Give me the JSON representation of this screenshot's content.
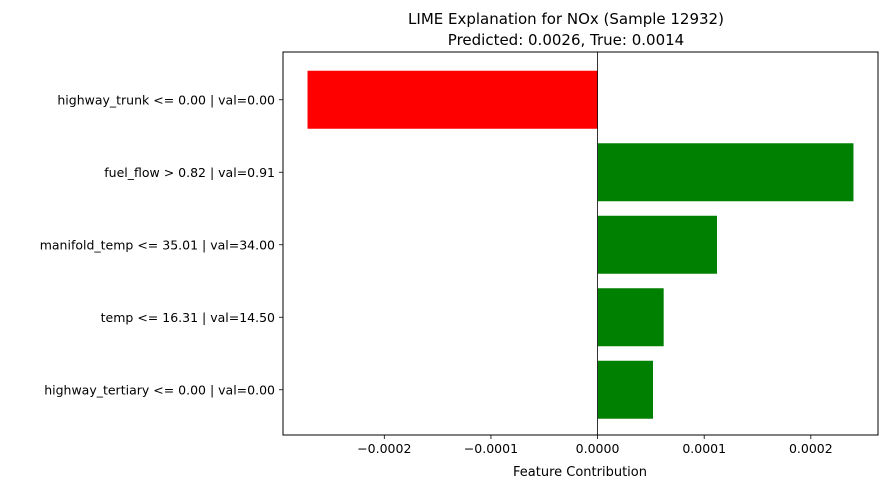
{
  "chart_data": {
    "type": "bar",
    "orientation": "horizontal",
    "title_line1": "LIME Explanation for NOx (Sample 12932)",
    "title_line2": "Predicted: 0.0026, True: 0.0014",
    "xlabel": "Feature Contribution",
    "ylabel": "",
    "categories": [
      "highway_trunk <= 0.00 | val=0.00",
      "fuel_flow > 0.82 | val=0.91",
      "manifold_temp <= 35.01 | val=34.00",
      "temp <= 16.31 | val=14.50",
      "highway_tertiary <= 0.00 | val=0.00"
    ],
    "values": [
      -0.000272,
      0.00024,
      0.000112,
      6.2e-05,
      5.2e-05
    ],
    "bar_colors": [
      "#ff0000",
      "#008000",
      "#008000",
      "#008000",
      "#008000"
    ],
    "xlim": [
      -0.000295,
      0.000263
    ],
    "xticks": [
      -0.0002,
      -0.0001,
      0.0,
      0.0001,
      0.0002
    ],
    "xtick_labels": [
      "−0.0002",
      "−0.0001",
      "0.0000",
      "0.0001",
      "0.0002"
    ],
    "zero_line": true,
    "grid": false
  }
}
